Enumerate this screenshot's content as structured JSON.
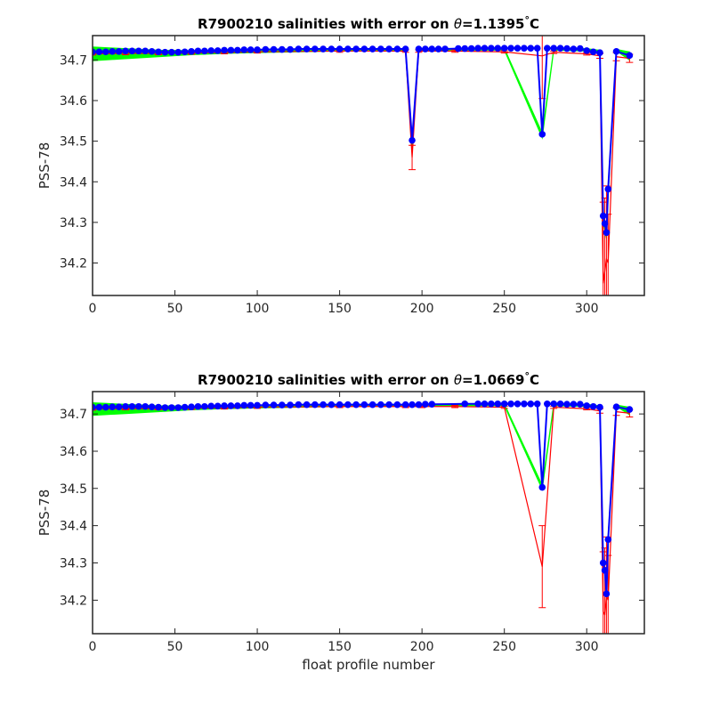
{
  "chart_data": [
    {
      "type": "scatter",
      "title_prefix": "R7900210 salinities with error on ",
      "title_symbol": "θ",
      "title_value": "=1.1395",
      "title_degree": "°",
      "title_unit": "C",
      "xlabel": "",
      "ylabel": "PSS-78",
      "xlim": [
        0,
        335
      ],
      "ylim": [
        34.12,
        34.76
      ],
      "xticks": [
        0,
        50,
        100,
        150,
        200,
        250,
        300
      ],
      "yticks": [
        34.2,
        34.3,
        34.4,
        34.5,
        34.6,
        34.7
      ],
      "grid": false,
      "colors": {
        "points": "#0000ff",
        "error": "#ff0000",
        "band": "#00ff00"
      },
      "series": [
        {
          "x": [
            0,
            4,
            8,
            12,
            16,
            20,
            24,
            28,
            32,
            36,
            40,
            44,
            48,
            52,
            56,
            60,
            64,
            68,
            72,
            76,
            80,
            84,
            88,
            92,
            96,
            100,
            105,
            110,
            115,
            120,
            125,
            130,
            135,
            140,
            145,
            150,
            155,
            160,
            165,
            170,
            175,
            180,
            185,
            190,
            194,
            198,
            202,
            206,
            210,
            214,
            222,
            226,
            230,
            234,
            238,
            242,
            246,
            250,
            254,
            258,
            262,
            266,
            270,
            273,
            276,
            280,
            284,
            288,
            292,
            296,
            300,
            304,
            308,
            310,
            311,
            312,
            313,
            318,
            326
          ],
          "y": [
            34.72,
            34.72,
            34.72,
            34.721,
            34.721,
            34.722,
            34.722,
            34.722,
            34.722,
            34.721,
            34.72,
            34.719,
            34.719,
            34.719,
            34.72,
            34.721,
            34.722,
            34.722,
            34.723,
            34.723,
            34.724,
            34.724,
            34.724,
            34.725,
            34.725,
            34.725,
            34.726,
            34.726,
            34.726,
            34.726,
            34.727,
            34.727,
            34.727,
            34.727,
            34.727,
            34.727,
            34.727,
            34.727,
            34.727,
            34.727,
            34.727,
            34.727,
            34.727,
            34.727,
            34.502,
            34.727,
            34.727,
            34.727,
            34.727,
            34.727,
            34.728,
            34.728,
            34.728,
            34.729,
            34.729,
            34.729,
            34.729,
            34.729,
            34.729,
            34.729,
            34.729,
            34.729,
            34.729,
            34.517,
            34.729,
            34.729,
            34.729,
            34.728,
            34.727,
            34.728,
            34.723,
            34.72,
            34.718,
            34.316,
            34.297,
            34.275,
            34.382,
            34.721,
            34.711
          ],
          "err": [
            0.003,
            0.003,
            0.003,
            0.003,
            0.003,
            0.003,
            0.003,
            0.003,
            0.003,
            0.003,
            0.003,
            0.003,
            0.003,
            0.003,
            0.003,
            0.003,
            0.003,
            0.003,
            0.003,
            0.003,
            0.003,
            0.003,
            0.003,
            0.003,
            0.003,
            0.003,
            0.003,
            0.003,
            0.003,
            0.003,
            0.003,
            0.003,
            0.003,
            0.003,
            0.003,
            0.003,
            0.003,
            0.003,
            0.003,
            0.003,
            0.003,
            0.003,
            0.003,
            0.003,
            0.03,
            0.003,
            0.003,
            0.003,
            0.003,
            0.003,
            0.003,
            0.003,
            0.003,
            0.003,
            0.003,
            0.003,
            0.003,
            0.003,
            0.003,
            0.003,
            0.003,
            0.003,
            0.003,
            0.105,
            0.003,
            0.003,
            0.003,
            0.004,
            0.004,
            0.004,
            0.005,
            0.005,
            0.006,
            0.1,
            0.12,
            0.1,
            0.08,
            0.006,
            0.006
          ],
          "cal_x": [
            0,
            20,
            40,
            60,
            80,
            100,
            150,
            190,
            194,
            198,
            220,
            250,
            273,
            280,
            300,
            308,
            310,
            311,
            312,
            313,
            318,
            326
          ],
          "cal_y": [
            34.715,
            34.716,
            34.716,
            34.717,
            34.718,
            34.72,
            34.722,
            34.722,
            34.46,
            34.722,
            34.722,
            34.72,
            34.71,
            34.719,
            34.715,
            34.71,
            34.15,
            34.18,
            34.21,
            34.2,
            34.708,
            34.704
          ],
          "cal_err": [
            0.003,
            0.003,
            0.003,
            0.003,
            0.003,
            0.003,
            0.003,
            0.003,
            0.03,
            0.003,
            0.003,
            0.003,
            0.105,
            0.003,
            0.003,
            0.006,
            0.2,
            0.18,
            0.18,
            0.12,
            0.01,
            0.01
          ],
          "band_lower": [
            34.698,
            34.703,
            34.708,
            34.713,
            34.716,
            34.718,
            34.722,
            34.724,
            34.486,
            34.724,
            34.724,
            34.724,
            34.508,
            34.724,
            34.722,
            34.72,
            34.3,
            34.28,
            34.26,
            34.36,
            34.722,
            34.7
          ],
          "band_upper": [
            34.732,
            34.728,
            34.724,
            34.723,
            34.724,
            34.725,
            34.727,
            34.727,
            34.506,
            34.727,
            34.728,
            34.729,
            34.52,
            34.729,
            34.728,
            34.724,
            34.32,
            34.3,
            34.28,
            34.38,
            34.726,
            34.72
          ]
        }
      ]
    },
    {
      "type": "scatter",
      "title_prefix": "R7900210 salinities with error on ",
      "title_symbol": "θ",
      "title_value": "=1.0669",
      "title_degree": "°",
      "title_unit": "C",
      "xlabel": "float profile number",
      "ylabel": "PSS-78",
      "xlim": [
        0,
        335
      ],
      "ylim": [
        34.11,
        34.76
      ],
      "xticks": [
        0,
        50,
        100,
        150,
        200,
        250,
        300
      ],
      "yticks": [
        34.2,
        34.3,
        34.4,
        34.5,
        34.6,
        34.7
      ],
      "grid": false,
      "colors": {
        "points": "#0000ff",
        "error": "#ff0000",
        "band": "#00ff00"
      },
      "series": [
        {
          "x": [
            0,
            4,
            8,
            12,
            16,
            20,
            24,
            28,
            32,
            36,
            40,
            44,
            48,
            52,
            56,
            60,
            64,
            68,
            72,
            76,
            80,
            84,
            88,
            92,
            96,
            100,
            105,
            110,
            115,
            120,
            125,
            130,
            135,
            140,
            145,
            150,
            155,
            160,
            165,
            170,
            175,
            180,
            185,
            190,
            194,
            198,
            202,
            206,
            226,
            234,
            238,
            242,
            246,
            250,
            254,
            258,
            262,
            266,
            270,
            273,
            276,
            280,
            284,
            288,
            292,
            296,
            300,
            304,
            308,
            310,
            311,
            312,
            313,
            318,
            326
          ],
          "y": [
            34.718,
            34.718,
            34.718,
            34.719,
            34.719,
            34.72,
            34.72,
            34.72,
            34.72,
            34.719,
            34.718,
            34.717,
            34.717,
            34.717,
            34.718,
            34.719,
            34.72,
            34.72,
            34.721,
            34.721,
            34.722,
            34.722,
            34.722,
            34.723,
            34.723,
            34.723,
            34.724,
            34.724,
            34.724,
            34.724,
            34.725,
            34.725,
            34.725,
            34.725,
            34.725,
            34.725,
            34.725,
            34.725,
            34.725,
            34.725,
            34.725,
            34.725,
            34.725,
            34.725,
            34.725,
            34.725,
            34.726,
            34.726,
            34.727,
            34.727,
            34.727,
            34.727,
            34.727,
            34.727,
            34.727,
            34.727,
            34.727,
            34.727,
            34.727,
            34.503,
            34.727,
            34.727,
            34.727,
            34.726,
            34.726,
            34.726,
            34.722,
            34.72,
            34.718,
            34.3,
            34.28,
            34.217,
            34.363,
            34.719,
            34.712
          ],
          "err": [
            0.003,
            0.003,
            0.003,
            0.003,
            0.003,
            0.003,
            0.003,
            0.003,
            0.003,
            0.003,
            0.003,
            0.003,
            0.003,
            0.003,
            0.003,
            0.003,
            0.003,
            0.003,
            0.003,
            0.003,
            0.003,
            0.003,
            0.003,
            0.003,
            0.003,
            0.003,
            0.003,
            0.003,
            0.003,
            0.003,
            0.003,
            0.003,
            0.003,
            0.003,
            0.003,
            0.003,
            0.003,
            0.003,
            0.003,
            0.003,
            0.003,
            0.003,
            0.003,
            0.003,
            0.003,
            0.003,
            0.003,
            0.003,
            0.003,
            0.003,
            0.003,
            0.003,
            0.003,
            0.003,
            0.003,
            0.003,
            0.003,
            0.003,
            0.003,
            0.11,
            0.003,
            0.003,
            0.003,
            0.004,
            0.004,
            0.004,
            0.005,
            0.005,
            0.006,
            0.06,
            0.08,
            0.1,
            0.04,
            0.006,
            0.006
          ],
          "cal_x": [
            0,
            20,
            40,
            60,
            80,
            100,
            150,
            190,
            200,
            220,
            250,
            273,
            280,
            300,
            308,
            310,
            311,
            312,
            313,
            318,
            326
          ],
          "cal_y": [
            34.713,
            34.714,
            34.714,
            34.715,
            34.716,
            34.718,
            34.72,
            34.72,
            34.72,
            34.72,
            34.718,
            34.29,
            34.718,
            34.714,
            34.708,
            34.17,
            34.16,
            34.21,
            34.2,
            34.706,
            34.702
          ],
          "cal_err": [
            0.003,
            0.003,
            0.003,
            0.003,
            0.003,
            0.003,
            0.003,
            0.003,
            0.003,
            0.003,
            0.003,
            0.11,
            0.003,
            0.003,
            0.006,
            0.16,
            0.18,
            0.16,
            0.12,
            0.01,
            0.01
          ],
          "band_lower": [
            34.696,
            34.701,
            34.706,
            34.711,
            34.714,
            34.716,
            34.72,
            34.722,
            34.722,
            34.722,
            34.722,
            34.497,
            34.722,
            34.72,
            34.718,
            34.29,
            34.27,
            34.207,
            34.353,
            34.72,
            34.698
          ],
          "band_upper": [
            34.73,
            34.726,
            34.722,
            34.721,
            34.722,
            34.723,
            34.725,
            34.725,
            34.726,
            34.726,
            34.727,
            34.509,
            34.727,
            34.726,
            34.722,
            34.31,
            34.29,
            34.227,
            34.373,
            34.724,
            34.718
          ]
        }
      ]
    }
  ]
}
